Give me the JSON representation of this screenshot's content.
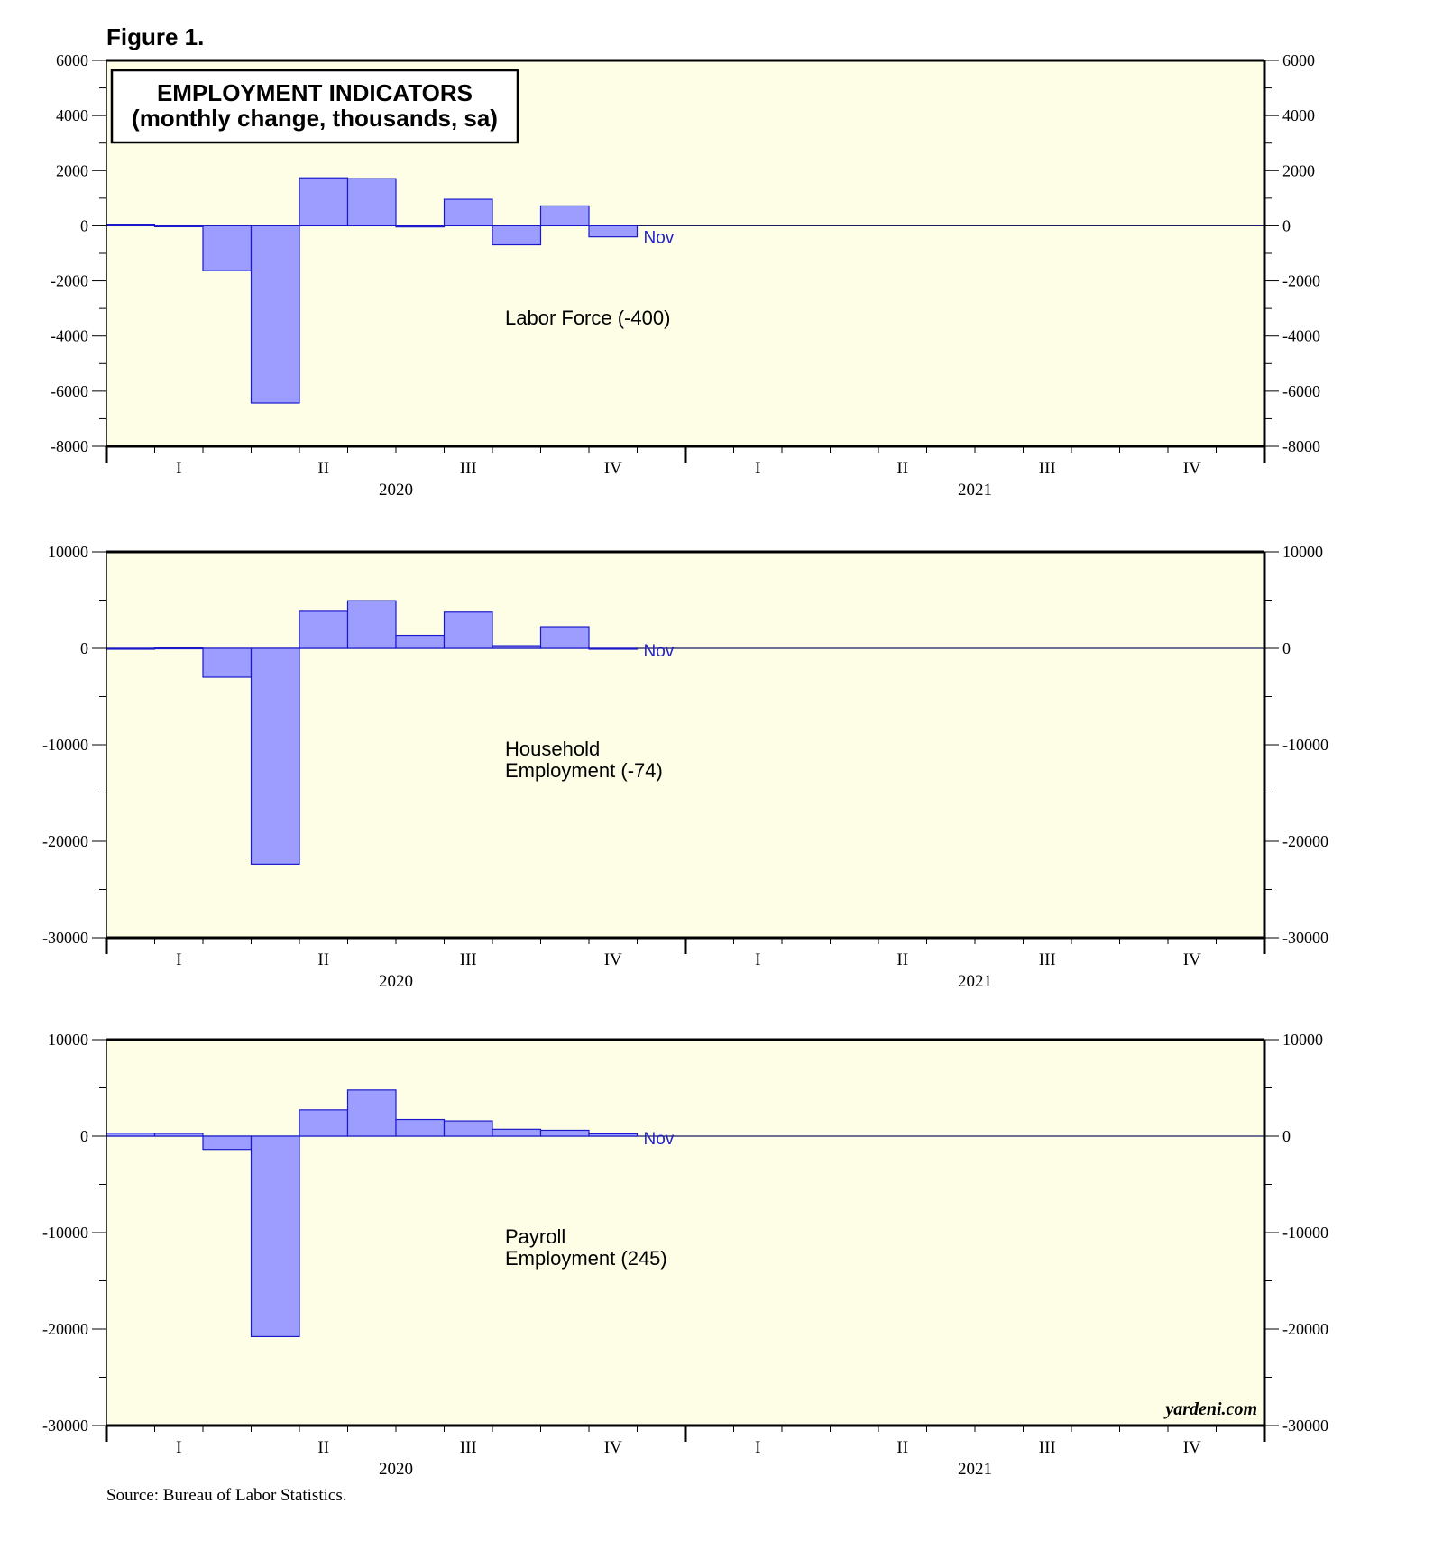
{
  "figure_label": "Figure 1.",
  "title_box": {
    "line1": "EMPLOYMENT INDICATORS",
    "line2": "(monthly change, thousands, sa)"
  },
  "source": "Source: Bureau of Labor Statistics.",
  "watermark": "yardeni.com",
  "colors": {
    "plot_background": "#fefee6",
    "bar_fill": "#9d9dff",
    "bar_stroke": "#1a1acc",
    "zero_line": "#1a1a66",
    "frame": "#000000",
    "latest_label": "#2222cc"
  },
  "chart_data": [
    {
      "type": "bar",
      "series_name": "Labor Force",
      "annotation_lines": [
        "Labor Force (-400)"
      ],
      "latest_label": "Nov",
      "months": [
        "Jan 2020",
        "Feb 2020",
        "Mar 2020",
        "Apr 2020",
        "May 2020",
        "Jun 2020",
        "Jul 2020",
        "Aug 2020",
        "Sep 2020",
        "Oct 2020",
        "Nov 2020"
      ],
      "values": [
        60,
        -30,
        -1630,
        -6430,
        1740,
        1710,
        -40,
        960,
        -690,
        720,
        -400
      ],
      "ylim": [
        -8000,
        6000
      ],
      "ymajor": 2000,
      "yminor": 1000,
      "yticks_left": [
        "6000",
        "4000",
        "2000",
        "0",
        "-2000",
        "-4000",
        "-6000",
        "-8000"
      ],
      "yticks_right": [
        "6000",
        "4000",
        "2000",
        "0",
        "-2000",
        "-4000",
        "-6000",
        "-8000"
      ],
      "quarters": [
        "I",
        "II",
        "III",
        "IV",
        "I",
        "II",
        "III",
        "IV"
      ],
      "years": [
        "2020",
        "2021"
      ]
    },
    {
      "type": "bar",
      "series_name": "Household Employment",
      "annotation_lines": [
        "Household",
        "Employment (-74)"
      ],
      "latest_label": "Nov",
      "months": [
        "Jan 2020",
        "Feb 2020",
        "Mar 2020",
        "Apr 2020",
        "May 2020",
        "Jun 2020",
        "Jul 2020",
        "Aug 2020",
        "Sep 2020",
        "Oct 2020",
        "Nov 2020"
      ],
      "values": [
        -90,
        45,
        -2990,
        -22370,
        3840,
        4940,
        1350,
        3760,
        275,
        2240,
        -74
      ],
      "ylim": [
        -30000,
        10000
      ],
      "ymajor": 10000,
      "yminor": 5000,
      "yticks_left": [
        "10000",
        "0",
        "-10000",
        "-20000",
        "-30000"
      ],
      "yticks_right": [
        "10000",
        "0",
        "-10000",
        "-20000",
        "-30000"
      ],
      "quarters": [
        "I",
        "II",
        "III",
        "IV",
        "I",
        "II",
        "III",
        "IV"
      ],
      "years": [
        "2020",
        "2021"
      ]
    },
    {
      "type": "bar",
      "series_name": "Payroll Employment",
      "annotation_lines": [
        "Payroll",
        "Employment (245)"
      ],
      "latest_label": "Nov",
      "months": [
        "Jan 2020",
        "Feb 2020",
        "Mar 2020",
        "Apr 2020",
        "May 2020",
        "Jun 2020",
        "Jul 2020",
        "Aug 2020",
        "Sep 2020",
        "Oct 2020",
        "Nov 2020"
      ],
      "values": [
        315,
        289,
        -1373,
        -20787,
        2725,
        4781,
        1726,
        1583,
        716,
        610,
        245
      ],
      "ylim": [
        -30000,
        10000
      ],
      "ymajor": 10000,
      "yminor": 5000,
      "yticks_left": [
        "10000",
        "0",
        "-10000",
        "-20000",
        "-30000"
      ],
      "yticks_right": [
        "10000",
        "0",
        "-10000",
        "-20000",
        "-30000"
      ],
      "quarters": [
        "I",
        "II",
        "III",
        "IV",
        "I",
        "II",
        "III",
        "IV"
      ],
      "years": [
        "2020",
        "2021"
      ]
    }
  ]
}
